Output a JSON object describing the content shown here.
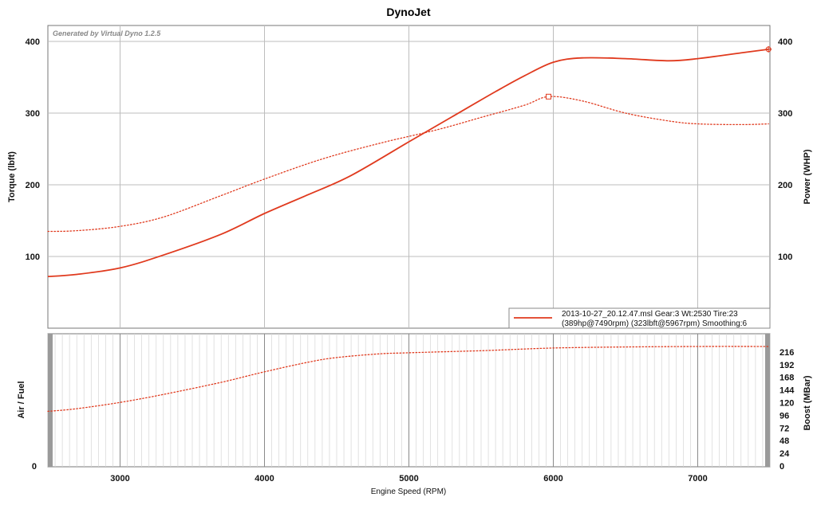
{
  "chart_data": [
    {
      "type": "line",
      "title": "DynoJet",
      "watermark": "Generated by Virtual Dyno 1.2.5",
      "xlabel": "",
      "ylabel_left": "Torque (lbft)",
      "ylabel_right": "Power (WHP)",
      "xlim": [
        2500,
        7500
      ],
      "ylim": [
        0,
        400
      ],
      "y_ticks": [
        100,
        200,
        300,
        400
      ],
      "grid": true,
      "legend_position": "bottom-right",
      "legend": {
        "line1": "2013-10-27_20.12.47.msl Gear:3 Wt:2530 Tire:23",
        "line2": "(389hp@7490rpm) (323lbft@5967rpm) Smoothing:6"
      },
      "series": [
        {
          "name": "Power",
          "style": "solid",
          "color": "#e03a1e",
          "x": [
            2500,
            2700,
            3000,
            3300,
            3700,
            4000,
            4300,
            4600,
            5000,
            5300,
            5600,
            5800,
            6000,
            6200,
            6500,
            6800,
            7000,
            7300,
            7490
          ],
          "y": [
            72,
            75,
            84,
            102,
            131,
            160,
            186,
            213,
            260,
            295,
            330,
            352,
            371,
            377,
            376,
            373,
            376,
            384,
            389
          ],
          "peak_marker": {
            "x": 7490,
            "y": 389
          }
        },
        {
          "name": "Torque",
          "style": "dotted",
          "color": "#e03a1e",
          "x": [
            2500,
            2700,
            3000,
            3300,
            3700,
            4000,
            4400,
            4800,
            5200,
            5500,
            5800,
            5967,
            6200,
            6500,
            6800,
            7000,
            7300,
            7490
          ],
          "y": [
            135,
            136,
            142,
            155,
            185,
            208,
            236,
            258,
            277,
            294,
            311,
            323,
            317,
            300,
            289,
            285,
            284,
            285
          ],
          "peak_marker": {
            "x": 5967,
            "y": 323
          }
        }
      ]
    },
    {
      "type": "line",
      "xlabel": "Engine Speed (RPM)",
      "ylabel_left": "Air / Fuel",
      "ylabel_right": "Boost (MBar)",
      "xlim": [
        2500,
        7500
      ],
      "x_ticks": [
        3000,
        4000,
        5000,
        6000,
        7000
      ],
      "left_ticks": [
        0
      ],
      "right_ticks": [
        0,
        24,
        48,
        72,
        96,
        120,
        144,
        168,
        192,
        216
      ],
      "ylim": [
        0,
        240
      ],
      "grid": true,
      "series": [
        {
          "style": "dotted",
          "color": "#e03a1e",
          "x": [
            2500,
            2700,
            3000,
            3300,
            3700,
            4000,
            4300,
            4500,
            4800,
            5000,
            5500,
            6000,
            6500,
            7000,
            7500
          ],
          "y": [
            105,
            110,
            122,
            137,
            160,
            180,
            198,
            207,
            214,
            216,
            220,
            225,
            227,
            228,
            228
          ]
        }
      ]
    }
  ]
}
